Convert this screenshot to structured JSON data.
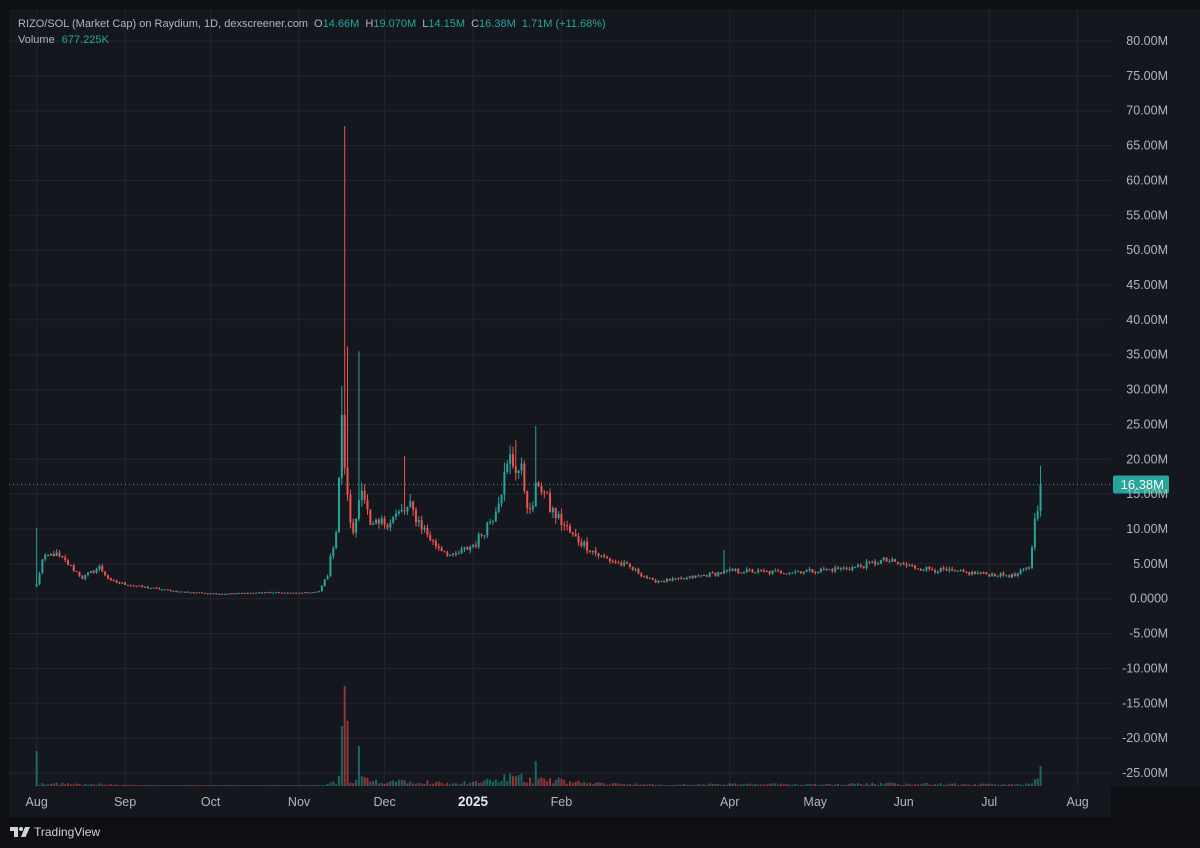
{
  "legend": {
    "symbol": "RIZO/SOL (Market Cap) on Raydium, 1D, dexscreener.com",
    "o_label": "O",
    "o_value": "14.66M",
    "h_label": "H",
    "h_value": "19.070M",
    "l_label": "L",
    "l_value": "14.15M",
    "c_label": "C",
    "c_value": "16.38M",
    "change": "1.71M (+11.68%)",
    "volume_label": "Volume",
    "volume_value": "677.225K"
  },
  "footer": {
    "brand": "TradingView",
    "logo_icon": "tradingview-logo-icon"
  },
  "colors": {
    "up": "#26a69a",
    "down": "#ef5350",
    "grid": "#232631",
    "text": "#b2b5be",
    "last_price_bg": "#26a69a"
  },
  "chart_data": {
    "type": "candlestick",
    "title": "RIZO/SOL (Market Cap) on Raydium, 1D, dexscreener.com",
    "y_ticks": [
      "80.00M",
      "75.00M",
      "70.00M",
      "65.00M",
      "60.00M",
      "55.00M",
      "50.00M",
      "45.00M",
      "40.00M",
      "35.00M",
      "30.00M",
      "25.00M",
      "20.00M",
      "15.00M",
      "10.00M",
      "5.00M",
      "0.0000",
      "-5.00M",
      "-10.00M",
      "-15.00M",
      "-20.00M",
      "-25.00M"
    ],
    "y_tick_values": [
      80,
      75,
      70,
      65,
      60,
      55,
      50,
      45,
      40,
      35,
      30,
      25,
      20,
      15,
      10,
      5,
      0,
      -5,
      -10,
      -15,
      -20,
      -25
    ],
    "ylim_millions": [
      -26.7,
      81.9
    ],
    "x_ticks": [
      {
        "label": "Aug",
        "date": "2024-08-01",
        "bold": false
      },
      {
        "label": "Sep",
        "date": "2024-09-01",
        "bold": false
      },
      {
        "label": "Oct",
        "date": "2024-10-01",
        "bold": false
      },
      {
        "label": "Nov",
        "date": "2024-11-01",
        "bold": false
      },
      {
        "label": "Dec",
        "date": "2024-12-01",
        "bold": false
      },
      {
        "label": "2025",
        "date": "2025-01-01",
        "bold": true
      },
      {
        "label": "Feb",
        "date": "2025-02-01",
        "bold": false
      },
      {
        "label": "Apr",
        "date": "2025-04-01",
        "bold": false
      },
      {
        "label": "May",
        "date": "2025-05-01",
        "bold": false
      },
      {
        "label": "Jun",
        "date": "2025-06-01",
        "bold": false
      },
      {
        "label": "Jul",
        "date": "2025-07-01",
        "bold": false
      },
      {
        "label": "Aug",
        "date": "2025-08-01",
        "bold": false
      }
    ],
    "xlim": [
      "2024-07-23",
      "2025-08-12"
    ],
    "last_price": 16.38,
    "last_price_label": "16.38M",
    "keypoints_millions": [
      [
        "2024-08-01",
        2.0
      ],
      [
        "2024-08-03",
        5.5
      ],
      [
        "2024-08-07",
        6.5
      ],
      [
        "2024-08-12",
        5.0
      ],
      [
        "2024-08-17",
        3.0
      ],
      [
        "2024-08-23",
        4.5
      ],
      [
        "2024-08-27",
        2.5
      ],
      [
        "2024-09-05",
        1.8
      ],
      [
        "2024-09-20",
        1.0
      ],
      [
        "2024-10-05",
        0.7
      ],
      [
        "2024-10-20",
        0.9
      ],
      [
        "2024-11-01",
        0.8
      ],
      [
        "2024-11-08",
        1.0
      ],
      [
        "2024-11-11",
        3.5
      ],
      [
        "2024-11-14",
        10.0
      ],
      [
        "2024-11-16",
        25.0
      ],
      [
        "2024-11-18",
        14.0
      ],
      [
        "2024-11-20",
        9.0
      ],
      [
        "2024-11-23",
        17.0
      ],
      [
        "2024-11-26",
        10.0
      ],
      [
        "2024-12-01",
        11.0
      ],
      [
        "2024-12-10",
        13.0
      ],
      [
        "2024-12-18",
        8.0
      ],
      [
        "2024-12-25",
        6.0
      ],
      [
        "2025-01-02",
        8.0
      ],
      [
        "2025-01-08",
        12.0
      ],
      [
        "2025-01-14",
        20.0
      ],
      [
        "2025-01-18",
        18.0
      ],
      [
        "2025-01-21",
        12.0
      ],
      [
        "2025-01-24",
        17.0
      ],
      [
        "2025-01-28",
        13.0
      ],
      [
        "2025-02-05",
        9.0
      ],
      [
        "2025-02-15",
        6.0
      ],
      [
        "2025-02-25",
        4.5
      ],
      [
        "2025-03-05",
        2.5
      ],
      [
        "2025-03-15",
        2.8
      ],
      [
        "2025-03-25",
        3.5
      ],
      [
        "2025-04-02",
        4.0
      ],
      [
        "2025-04-15",
        3.8
      ],
      [
        "2025-05-01",
        4.0
      ],
      [
        "2025-05-15",
        4.5
      ],
      [
        "2025-05-25",
        5.5
      ],
      [
        "2025-06-05",
        4.5
      ],
      [
        "2025-06-20",
        3.8
      ],
      [
        "2025-07-01",
        3.5
      ],
      [
        "2025-07-10",
        3.3
      ],
      [
        "2025-07-15",
        4.5
      ],
      [
        "2025-07-17",
        11.0
      ],
      [
        "2025-07-19",
        16.38
      ]
    ],
    "wick_highs_millions": [
      [
        "2024-08-01",
        10.2
      ],
      [
        "2024-11-16",
        30.5
      ],
      [
        "2024-11-17",
        67.8
      ],
      [
        "2024-11-18",
        36.2
      ],
      [
        "2024-11-22",
        35.5
      ],
      [
        "2024-12-08",
        20.5
      ],
      [
        "2025-01-16",
        22.8
      ],
      [
        "2025-01-23",
        24.8
      ],
      [
        "2025-03-30",
        7.0
      ],
      [
        "2025-07-19",
        19.07
      ]
    ],
    "volume_spikes_relative": [
      [
        "2024-08-01",
        0.35
      ],
      [
        "2024-11-16",
        0.6
      ],
      [
        "2024-11-17",
        1.0
      ],
      [
        "2024-11-18",
        0.65
      ],
      [
        "2024-11-22",
        0.4
      ],
      [
        "2025-01-23",
        0.25
      ],
      [
        "2025-07-19",
        0.2
      ]
    ]
  }
}
